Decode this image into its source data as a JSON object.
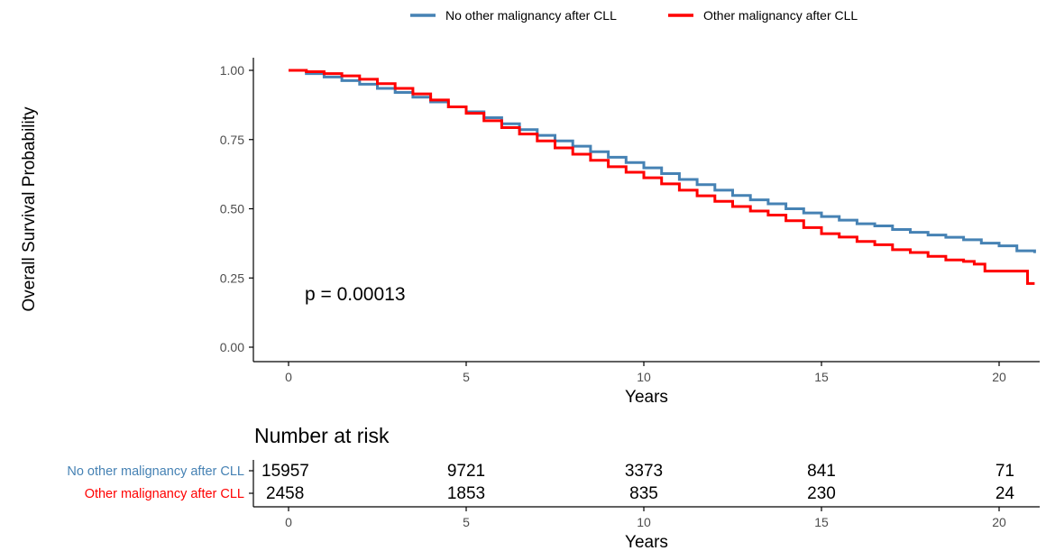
{
  "chart_data": [
    {
      "type": "line",
      "subtype": "kaplan-meier",
      "xlabel": "Years",
      "ylabel": "Overall Survival Probability",
      "xlim": [
        -1,
        21
      ],
      "ylim": [
        -0.05,
        1.05
      ],
      "x_ticks": [
        0,
        5,
        10,
        15,
        20
      ],
      "y_ticks": [
        0.0,
        0.25,
        0.5,
        0.75,
        1.0
      ],
      "y_tick_labels": [
        "0.00",
        "0.25",
        "0.50",
        "0.75",
        "1.00"
      ],
      "grid": false,
      "legend_position": "top",
      "annotation": "p = 0.00013",
      "series": [
        {
          "name": "No other malignancy after CLL",
          "color": "#4682B4",
          "x": [
            0,
            0.5,
            1,
            1.5,
            2,
            2.5,
            3,
            3.5,
            4,
            4.5,
            5,
            5.5,
            6,
            6.5,
            7,
            7.5,
            8,
            8.5,
            9,
            9.5,
            10,
            10.5,
            11,
            11.5,
            12,
            12.5,
            13,
            13.5,
            14,
            14.5,
            15,
            15.5,
            16,
            16.5,
            17,
            17.5,
            18,
            18.5,
            19,
            19.5,
            20,
            20.5,
            21
          ],
          "y": [
            1.0,
            0.988,
            0.976,
            0.963,
            0.95,
            0.935,
            0.92,
            0.903,
            0.886,
            0.868,
            0.85,
            0.829,
            0.807,
            0.786,
            0.765,
            0.745,
            0.726,
            0.706,
            0.686,
            0.667,
            0.648,
            0.627,
            0.606,
            0.587,
            0.567,
            0.548,
            0.532,
            0.518,
            0.5,
            0.485,
            0.472,
            0.459,
            0.446,
            0.438,
            0.425,
            0.415,
            0.405,
            0.397,
            0.388,
            0.376,
            0.366,
            0.348,
            0.34
          ]
        },
        {
          "name": "Other malignancy after CLL",
          "color": "#FF0000",
          "x": [
            0,
            0.5,
            1,
            1.5,
            2,
            2.5,
            3,
            3.5,
            4,
            4.5,
            5,
            5.5,
            6,
            6.5,
            7,
            7.5,
            8,
            8.5,
            9,
            9.5,
            10,
            10.5,
            11,
            11.5,
            12,
            12.5,
            13,
            13.5,
            14,
            14.5,
            15,
            15.5,
            16,
            16.5,
            17,
            17.5,
            18,
            18.5,
            19,
            19.3,
            19.6,
            20,
            20.5,
            20.8,
            21
          ],
          "y": [
            1.0,
            0.995,
            0.988,
            0.98,
            0.968,
            0.952,
            0.935,
            0.915,
            0.893,
            0.868,
            0.845,
            0.818,
            0.793,
            0.77,
            0.745,
            0.72,
            0.697,
            0.675,
            0.652,
            0.632,
            0.612,
            0.59,
            0.567,
            0.547,
            0.527,
            0.508,
            0.492,
            0.477,
            0.457,
            0.432,
            0.41,
            0.398,
            0.382,
            0.37,
            0.352,
            0.342,
            0.328,
            0.315,
            0.31,
            0.3,
            0.275,
            0.275,
            0.275,
            0.23,
            0.23
          ]
        }
      ]
    },
    {
      "type": "table",
      "title": "Number at risk",
      "xlabel": "Years",
      "x_ticks": [
        0,
        5,
        10,
        15,
        20
      ],
      "rows": [
        {
          "label": "No other malignancy after CLL",
          "color": "#4682B4",
          "values": [
            "15957",
            "9721",
            "3373",
            "841",
            "71"
          ]
        },
        {
          "label": "Other malignancy after CLL",
          "color": "#FF0000",
          "values": [
            "2458",
            "1853",
            "835",
            "230",
            "24"
          ]
        }
      ]
    }
  ]
}
